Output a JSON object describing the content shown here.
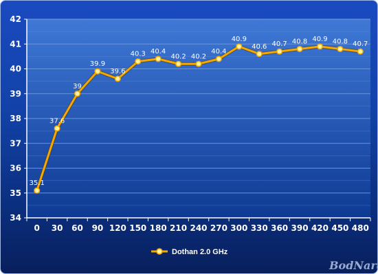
{
  "chart_data": {
    "type": "line",
    "title": "",
    "xlabel": "",
    "ylabel": "",
    "x": [
      "0",
      "30",
      "60",
      "90",
      "120",
      "150",
      "180",
      "210",
      "240",
      "270",
      "300",
      "330",
      "360",
      "390",
      "420",
      "450",
      "480"
    ],
    "series": [
      {
        "name": "Dothan 2.0 GHz",
        "values": [
          35.1,
          37.6,
          39,
          39.9,
          39.6,
          40.3,
          40.4,
          40.2,
          40.2,
          40.4,
          40.9,
          40.6,
          40.7,
          40.8,
          40.9,
          40.8,
          40.7
        ],
        "labels": [
          "35.1",
          "37.6",
          "39",
          "39.9",
          "39.6",
          "40.3",
          "40.4",
          "40.2",
          "40.2",
          "40.4",
          "40.9",
          "40.6",
          "40.7",
          "40.8",
          "40.9",
          "40.8",
          "40.7"
        ],
        "color": "#f5a800",
        "marker_color": "#fff2a0"
      }
    ],
    "ylim": [
      34,
      42
    ],
    "yticks": [
      "34",
      "35",
      "36",
      "37",
      "38",
      "39",
      "40",
      "41",
      "42"
    ],
    "grid": true,
    "legend_position": "bottom-center",
    "colors": {
      "grid": "#6f9be0",
      "axis": "#ffffff",
      "plot_band_light": "#3f78d6",
      "plot_band_dark": "#0e3a93"
    }
  },
  "watermark": {
    "text": "BodNara"
  }
}
